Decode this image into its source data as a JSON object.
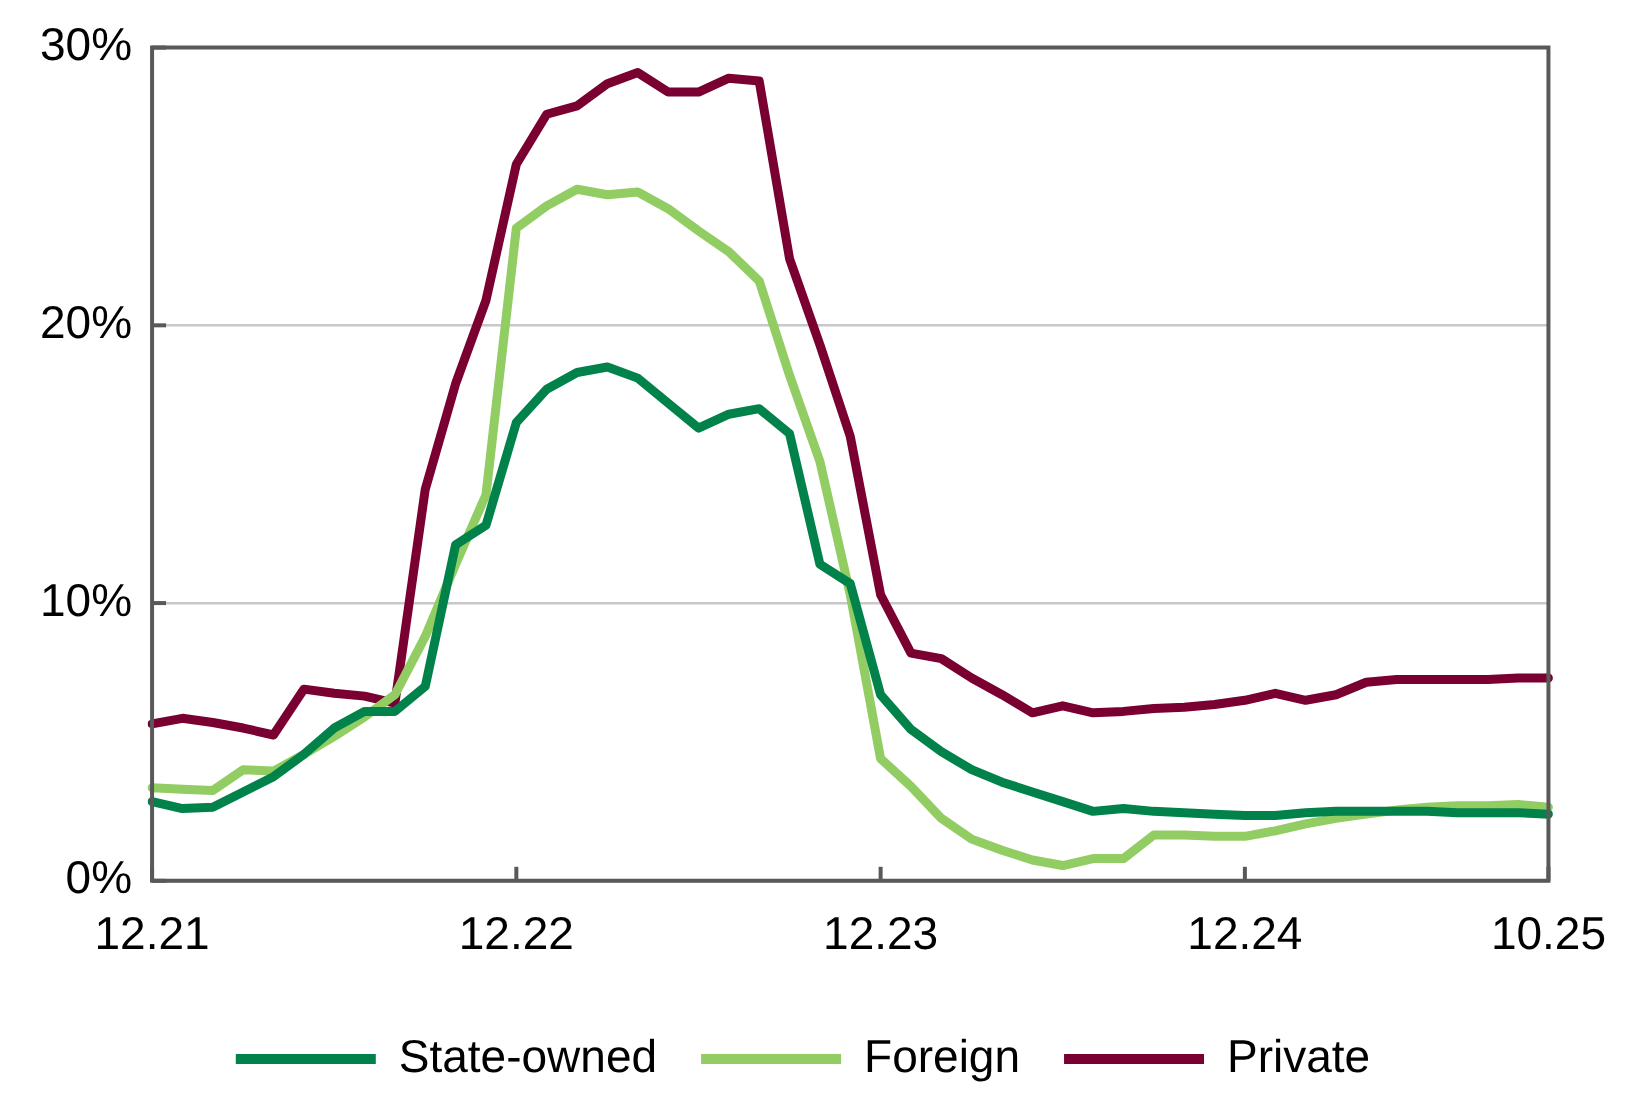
{
  "chart_data": {
    "type": "line",
    "categories": [
      "12.21",
      null,
      null,
      null,
      null,
      null,
      null,
      null,
      null,
      null,
      null,
      null,
      "12.22",
      null,
      null,
      null,
      null,
      null,
      null,
      null,
      null,
      null,
      null,
      null,
      "12.23",
      null,
      null,
      null,
      null,
      null,
      null,
      null,
      null,
      null,
      null,
      null,
      "12.24",
      null,
      null,
      null,
      null,
      null,
      null,
      null,
      null,
      null,
      "10.25"
    ],
    "series": [
      {
        "name": "State-owned",
        "color": "#00824a",
        "values": [
          2.85,
          2.6,
          2.65,
          3.2,
          3.75,
          4.55,
          5.5,
          6.1,
          6.1,
          7.0,
          12.1,
          12.8,
          16.5,
          17.7,
          18.3,
          18.5,
          18.1,
          17.2,
          16.3,
          16.8,
          17.0,
          16.1,
          11.4,
          10.7,
          6.7,
          5.45,
          4.65,
          4.0,
          3.55,
          3.2,
          2.85,
          2.5,
          2.6,
          2.5,
          2.45,
          2.4,
          2.35,
          2.35,
          2.45,
          2.5,
          2.5,
          2.5,
          2.5,
          2.45,
          2.45,
          2.45,
          2.4
        ]
      },
      {
        "name": "Foreign",
        "color": "#92cd64",
        "values": [
          3.35,
          3.3,
          3.25,
          4.0,
          3.95,
          4.55,
          5.2,
          5.9,
          6.7,
          8.8,
          11.4,
          13.9,
          23.5,
          24.3,
          24.9,
          24.7,
          24.8,
          24.2,
          23.4,
          22.65,
          21.6,
          18.2,
          15.1,
          10.3,
          4.4,
          3.4,
          2.25,
          1.5,
          1.1,
          0.75,
          0.55,
          0.8,
          0.8,
          1.65,
          1.65,
          1.6,
          1.6,
          1.8,
          2.05,
          2.25,
          2.4,
          2.55,
          2.65,
          2.7,
          2.7,
          2.75,
          2.65
        ]
      },
      {
        "name": "Private",
        "color": "#7b0032",
        "values": [
          5.65,
          5.85,
          5.7,
          5.5,
          5.25,
          6.9,
          6.75,
          6.65,
          6.4,
          14.1,
          17.9,
          20.9,
          25.8,
          27.6,
          27.9,
          28.7,
          29.1,
          28.4,
          28.4,
          28.9,
          28.8,
          22.4,
          19.3,
          16.0,
          10.3,
          8.2,
          8.0,
          7.3,
          6.7,
          6.05,
          6.3,
          6.05,
          6.1,
          6.2,
          6.25,
          6.35,
          6.5,
          6.75,
          6.5,
          6.7,
          7.15,
          7.25,
          7.25,
          7.25,
          7.25,
          7.3,
          7.3
        ]
      }
    ],
    "ylim": [
      0,
      30
    ],
    "yticks": [
      {
        "value": 0,
        "label": "0%"
      },
      {
        "value": 10,
        "label": "10%"
      },
      {
        "value": 20,
        "label": "20%"
      },
      {
        "value": 30,
        "label": "30%"
      }
    ],
    "grid": "y",
    "legend": "bottom",
    "marker": "none",
    "line_style": "solid"
  }
}
